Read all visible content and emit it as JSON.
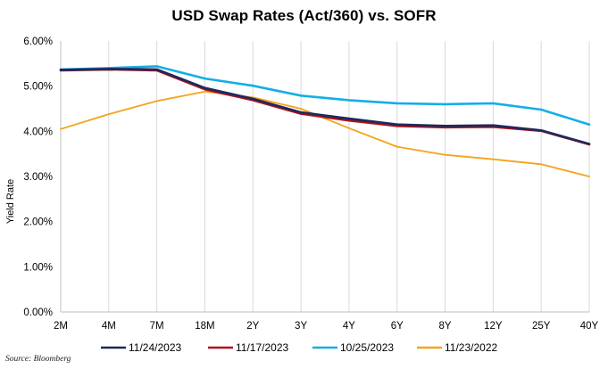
{
  "title": "USD Swap Rates (Act/360) vs. SOFR",
  "source": "Source: Bloomberg",
  "chart_data": {
    "type": "line",
    "title": "USD Swap Rates (Act/360) vs. SOFR",
    "xlabel": "",
    "ylabel": "Yield Rate",
    "categories": [
      "2M",
      "4M",
      "7M",
      "18M",
      "2Y",
      "3Y",
      "4Y",
      "6Y",
      "8Y",
      "12Y",
      "25Y",
      "40Y"
    ],
    "yticks": [
      "0.00%",
      "1.00%",
      "2.00%",
      "3.00%",
      "4.00%",
      "5.00%",
      "6.00%"
    ],
    "ylim": [
      0,
      6
    ],
    "grid": "vertical",
    "legend_position": "bottom",
    "series": [
      {
        "name": "11/24/2023",
        "color": "#1a2a5e",
        "values": [
          5.36,
          5.38,
          5.37,
          4.96,
          4.72,
          4.42,
          4.28,
          4.15,
          4.12,
          4.13,
          4.02,
          3.72
        ]
      },
      {
        "name": "11/17/2023",
        "color": "#b01019",
        "values": [
          5.35,
          5.37,
          5.35,
          4.93,
          4.69,
          4.39,
          4.24,
          4.12,
          4.09,
          4.1,
          4.01,
          3.71
        ]
      },
      {
        "name": "10/25/2023",
        "color": "#14aee6",
        "values": [
          5.37,
          5.4,
          5.44,
          5.17,
          5.01,
          4.79,
          4.69,
          4.62,
          4.6,
          4.62,
          4.48,
          4.15
        ]
      },
      {
        "name": "11/23/2022",
        "color": "#f5a21b",
        "values": [
          4.05,
          4.38,
          4.67,
          4.88,
          4.75,
          4.5,
          4.07,
          3.66,
          3.48,
          3.38,
          3.27,
          3.0
        ]
      }
    ]
  }
}
